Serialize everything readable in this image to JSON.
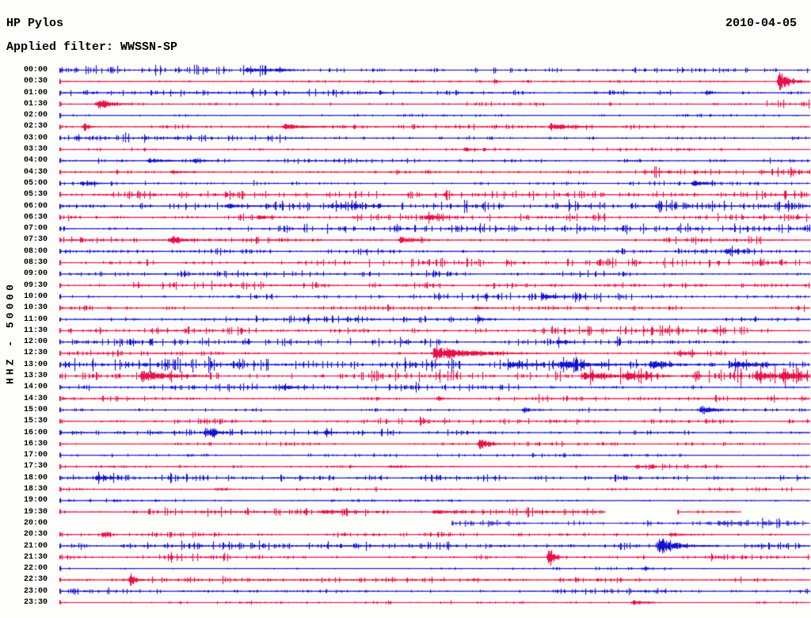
{
  "header": {
    "title": "HP Pylos",
    "date": "2010-04-05",
    "filter": "Applied filter: WWSSN-SP"
  },
  "plot": {
    "y_axis_label": "HHZ - 50000"
  },
  "chart_data": {
    "type": "line",
    "subtype": "helicorder-seismogram",
    "station": "HP Pylos",
    "date": "2010-04-05",
    "applied_filter": "WWSSN-SP",
    "channel_and_scale": "HHZ - 50000",
    "row_duration_minutes": 30,
    "first_row": "00:00",
    "last_row": "23:30",
    "legend": "none",
    "grid": "off",
    "colors": {
      "b": "#1412cc",
      "r": "#e8104a"
    },
    "events_format": "each event = [x position as fraction of row 0-1, peak half-amplitude px, decay width px]",
    "segments_format": "seg = visible spans of trace as fractions (data gaps elsewhere); default full row",
    "rows": [
      {
        "t": "00:00",
        "c": "b",
        "n": 1.1,
        "ev": [
          [
            0.25,
            2.5,
            30
          ],
          [
            0.29,
            2,
            15
          ]
        ]
      },
      {
        "t": "00:30",
        "c": "r",
        "n": 0.45,
        "ev": [
          [
            0.47,
            1.5,
            6
          ],
          [
            0.58,
            1.5,
            6
          ],
          [
            0.96,
            12,
            14
          ]
        ]
      },
      {
        "t": "01:00",
        "c": "b",
        "n": 1.2,
        "ev": [
          [
            0.863,
            4,
            6
          ]
        ]
      },
      {
        "t": "01:30",
        "c": "r",
        "n": 1.0,
        "ev": [
          [
            0.052,
            6.5,
            18
          ]
        ]
      },
      {
        "t": "02:00",
        "c": "b",
        "n": 0.5,
        "ev": []
      },
      {
        "t": "02:30",
        "c": "r",
        "n": 0.7,
        "ev": [
          [
            0.033,
            7,
            5
          ],
          [
            0.3,
            3.5,
            25
          ],
          [
            0.655,
            4.5,
            28
          ]
        ]
      },
      {
        "t": "03:00",
        "c": "b",
        "n": 1.1,
        "ev": []
      },
      {
        "t": "03:30",
        "c": "r",
        "n": 0.5,
        "ev": [
          [
            0.54,
            2.5,
            12
          ]
        ]
      },
      {
        "t": "04:00",
        "c": "b",
        "n": 0.8,
        "ev": [
          [
            0.12,
            2.5,
            25
          ],
          [
            0.18,
            2.5,
            12
          ]
        ]
      },
      {
        "t": "04:30",
        "c": "r",
        "n": 1.3,
        "ev": [
          [
            0.15,
            2.5,
            15
          ]
        ]
      },
      {
        "t": "05:00",
        "c": "b",
        "n": 0.7,
        "ev": [
          [
            0.03,
            2.5,
            20
          ],
          [
            0.845,
            3.5,
            18
          ]
        ]
      },
      {
        "t": "05:30",
        "c": "r",
        "n": 1.2,
        "ev": []
      },
      {
        "t": "06:00",
        "c": "b",
        "n": 1.6,
        "ev": [
          [
            0.225,
            2.5,
            20
          ],
          [
            0.37,
            2.5,
            25
          ]
        ]
      },
      {
        "t": "06:30",
        "c": "r",
        "n": 1.4,
        "ev": [
          [
            0.265,
            3,
            15
          ],
          [
            0.49,
            2.5,
            20
          ]
        ]
      },
      {
        "t": "07:00",
        "c": "b",
        "n": 1.2,
        "ev": []
      },
      {
        "t": "07:30",
        "c": "r",
        "n": 1.1,
        "ev": [
          [
            0.148,
            5,
            16
          ],
          [
            0.454,
            4,
            18
          ]
        ]
      },
      {
        "t": "08:00",
        "c": "b",
        "n": 1.0,
        "ev": [
          [
            0.89,
            4,
            12
          ]
        ]
      },
      {
        "t": "08:30",
        "c": "r",
        "n": 1.1,
        "ev": []
      },
      {
        "t": "09:00",
        "c": "b",
        "n": 0.9,
        "ev": []
      },
      {
        "t": "09:30",
        "c": "r",
        "n": 1.0,
        "ev": []
      },
      {
        "t": "10:00",
        "c": "b",
        "n": 1.3,
        "ev": [
          [
            0.645,
            3.5,
            20
          ]
        ]
      },
      {
        "t": "10:30",
        "c": "r",
        "n": 0.8,
        "ev": [
          [
            0.555,
            2,
            12
          ]
        ]
      },
      {
        "t": "11:00",
        "c": "b",
        "n": 0.9,
        "ev": [
          [
            0.558,
            2.5,
            8
          ]
        ]
      },
      {
        "t": "11:30",
        "c": "r",
        "n": 1.3,
        "ev": []
      },
      {
        "t": "12:00",
        "c": "b",
        "n": 1.2,
        "ev": [
          [
            0.665,
            2.5,
            12
          ]
        ]
      },
      {
        "t": "12:30",
        "c": "r",
        "n": 0.8,
        "ev": [
          [
            0.5,
            9,
            45
          ],
          [
            0.825,
            2.5,
            15
          ]
        ]
      },
      {
        "t": "13:00",
        "c": "b",
        "n": 1.9,
        "ev": [
          [
            0.6,
            3.5,
            25
          ],
          [
            0.67,
            4,
            30
          ],
          [
            0.79,
            4.5,
            25
          ],
          [
            0.9,
            3.5,
            20
          ]
        ]
      },
      {
        "t": "13:30",
        "c": "r",
        "n": 2.0,
        "ev": [
          [
            0.11,
            6.5,
            30
          ],
          [
            0.7,
            4.5,
            25
          ],
          [
            0.755,
            4.5,
            20
          ],
          [
            0.93,
            5,
            18
          ],
          [
            0.965,
            5.5,
            20
          ]
        ]
      },
      {
        "t": "14:00",
        "c": "b",
        "n": 1.1,
        "ev": [
          [
            0.3,
            3.5,
            12
          ]
        ]
      },
      {
        "t": "14:30",
        "c": "r",
        "n": 0.9,
        "ev": [
          [
            0.505,
            3,
            6
          ]
        ]
      },
      {
        "t": "15:00",
        "c": "b",
        "n": 1.0,
        "ev": [
          [
            0.62,
            3,
            15
          ],
          [
            0.855,
            4.5,
            20
          ]
        ]
      },
      {
        "t": "15:30",
        "c": "r",
        "n": 1.0,
        "ev": []
      },
      {
        "t": "16:00",
        "c": "b",
        "n": 0.9,
        "ev": [
          [
            0.195,
            5.5,
            14
          ],
          [
            0.355,
            2.5,
            8
          ]
        ]
      },
      {
        "t": "16:30",
        "c": "r",
        "n": 0.6,
        "ev": [
          [
            0.56,
            6,
            14
          ]
        ]
      },
      {
        "t": "17:00",
        "c": "b",
        "n": 0.6,
        "ev": []
      },
      {
        "t": "17:30",
        "c": "r",
        "n": 0.8,
        "ev": [
          [
            0.44,
            1.5,
            30
          ],
          [
            0.77,
            2.5,
            8
          ]
        ]
      },
      {
        "t": "18:00",
        "c": "b",
        "n": 1.6,
        "ev": [
          [
            0.05,
            3.5,
            15
          ]
        ]
      },
      {
        "t": "18:30",
        "c": "r",
        "n": 0.6,
        "ev": [
          [
            0.21,
            1.5,
            20
          ]
        ]
      },
      {
        "t": "19:00",
        "c": "b",
        "n": 0.45,
        "ev": []
      },
      {
        "t": "19:30",
        "c": "r",
        "n": 1.2,
        "seg": [
          [
            0,
            0.727
          ],
          [
            0.824,
            0.908
          ]
        ],
        "ev": [
          [
            0.35,
            2.5,
            20
          ],
          [
            0.5,
            2.5,
            25
          ]
        ]
      },
      {
        "t": "20:00",
        "c": "b",
        "n": 1.2,
        "seg": [
          [
            0.523,
            1
          ]
        ],
        "ev": [
          [
            0.88,
            2.5,
            20
          ]
        ]
      },
      {
        "t": "20:30",
        "c": "r",
        "n": 0.8,
        "ev": [
          [
            0.058,
            3.5,
            6
          ],
          [
            0.815,
            2.5,
            18
          ]
        ]
      },
      {
        "t": "21:00",
        "c": "b",
        "n": 1.1,
        "ev": [
          [
            0.8,
            9,
            25
          ]
        ]
      },
      {
        "t": "21:30",
        "c": "r",
        "n": 1.1,
        "ev": [
          [
            0.653,
            14,
            5
          ]
        ]
      },
      {
        "t": "22:00",
        "c": "b",
        "n": 0.5,
        "ev": [
          [
            0.78,
            2,
            8
          ]
        ]
      },
      {
        "t": "22:30",
        "c": "r",
        "n": 0.9,
        "ev": [
          [
            0.095,
            7,
            6
          ]
        ]
      },
      {
        "t": "23:00",
        "c": "b",
        "n": 1.0,
        "ev": []
      },
      {
        "t": "23:30",
        "c": "r",
        "n": 0.45,
        "ev": [
          [
            0.25,
            1.5,
            5
          ],
          [
            0.765,
            3.5,
            16
          ]
        ]
      }
    ]
  }
}
